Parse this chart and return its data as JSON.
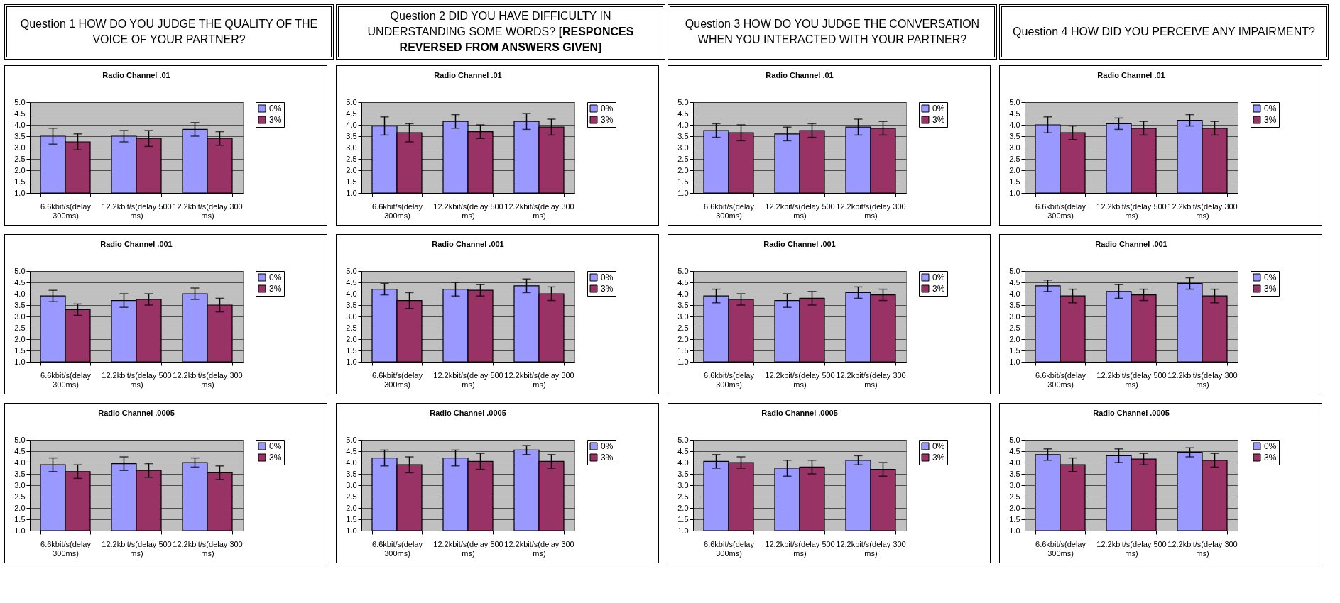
{
  "chart_data": [
    {
      "type": "bar",
      "title": "Radio Channel .01",
      "annotations": [
        "Question 1 HOW DO YOU JUDGE THE QUALITY OF THE VOICE OF YOUR PARTNER?"
      ],
      "categories": [
        "6.6kbit/s(delay 300ms)",
        "12.2kbit/s(delay 500 ms)",
        "12.2kbit/s(delay 300 ms)"
      ],
      "series": [
        {
          "name": "0%",
          "color": "#9999ff",
          "values": [
            3.5,
            3.5,
            3.8
          ],
          "errors": [
            0.35,
            0.25,
            0.3
          ]
        },
        {
          "name": "3%",
          "color": "#993366",
          "values": [
            3.25,
            3.4,
            3.4
          ],
          "errors": [
            0.35,
            0.35,
            0.3
          ]
        }
      ],
      "ylim": [
        1,
        5
      ],
      "yticks": [
        {
          "value": 1,
          "label": "1.0"
        },
        {
          "value": 1.5,
          "label": "1.5"
        },
        {
          "value": 2,
          "label": "2.0"
        },
        {
          "value": 2.5,
          "label": "2.5"
        },
        {
          "value": 3,
          "label": "3.0"
        },
        {
          "value": 3.5,
          "label": "3.5"
        },
        {
          "value": 4,
          "label": "4.0"
        },
        {
          "value": 4.5,
          "label": "4.5"
        },
        {
          "value": 5,
          "label": "5.0"
        }
      ],
      "grid": "y",
      "legend": "right"
    },
    {
      "type": "bar",
      "title": "Radio Channel .01",
      "annotations": [
        "Question 2 DID YOU HAVE DIFFICULTY IN UNDERSTANDING SOME WORDS?",
        "[RESPONCES REVERSED FROM ANSWERS GIVEN]"
      ],
      "categories": [
        "6.6kbit/s(delay 300ms)",
        "12.2kbit/s(delay 500 ms)",
        "12.2kbit/s(delay 300 ms)"
      ],
      "series": [
        {
          "name": "0%",
          "color": "#9999ff",
          "values": [
            3.95,
            4.15,
            4.15
          ],
          "errors": [
            0.4,
            0.3,
            0.35
          ]
        },
        {
          "name": "3%",
          "color": "#993366",
          "values": [
            3.65,
            3.7,
            3.9
          ],
          "errors": [
            0.4,
            0.3,
            0.35
          ]
        }
      ],
      "ylim": [
        1,
        5
      ],
      "yticks": [
        {
          "value": 1,
          "label": "1.0"
        },
        {
          "value": 1.5,
          "label": "1.5"
        },
        {
          "value": 2,
          "label": "2.0"
        },
        {
          "value": 2.5,
          "label": "2.5"
        },
        {
          "value": 3,
          "label": "3.0"
        },
        {
          "value": 3.5,
          "label": "3.5"
        },
        {
          "value": 4,
          "label": "4.0"
        },
        {
          "value": 4.5,
          "label": "4.5"
        },
        {
          "value": 5,
          "label": "5.0"
        }
      ],
      "grid": "y",
      "legend": "right"
    },
    {
      "type": "bar",
      "title": "Radio Channel .01",
      "annotations": [
        "Question 3 HOW DO YOU JUDGE THE CONVERSATION WHEN YOU INTERACTED WITH YOUR PARTNER?"
      ],
      "categories": [
        "6.6kbit/s(delay 300ms)",
        "12.2kbit/s(delay 500 ms)",
        "12.2kbit/s(delay 300 ms)"
      ],
      "series": [
        {
          "name": "0%",
          "color": "#9999ff",
          "values": [
            3.75,
            3.6,
            3.9
          ],
          "errors": [
            0.3,
            0.3,
            0.35
          ]
        },
        {
          "name": "3%",
          "color": "#993366",
          "values": [
            3.65,
            3.75,
            3.85
          ],
          "errors": [
            0.35,
            0.3,
            0.3
          ]
        }
      ],
      "ylim": [
        1,
        5
      ],
      "yticks": [
        {
          "value": 1,
          "label": "1.0"
        },
        {
          "value": 1.5,
          "label": "1.5"
        },
        {
          "value": 2,
          "label": "2.0"
        },
        {
          "value": 2.5,
          "label": "2.5"
        },
        {
          "value": 3,
          "label": "3.0"
        },
        {
          "value": 3.5,
          "label": "3.5"
        },
        {
          "value": 4,
          "label": "4.0"
        },
        {
          "value": 4.5,
          "label": "4.5"
        },
        {
          "value": 5,
          "label": "5.0"
        }
      ],
      "grid": "y",
      "legend": "right"
    },
    {
      "type": "bar",
      "title": "Radio Channel .01",
      "annotations": [
        "Question 4 HOW DID YOU PERCEIVE ANY IMPAIRMENT?"
      ],
      "categories": [
        "6.6kbit/s(delay 300ms)",
        "12.2kbit/s(delay 500 ms)",
        "12.2kbit/s(delay 300 ms)"
      ],
      "series": [
        {
          "name": "0%",
          "color": "#9999ff",
          "values": [
            4.0,
            4.05,
            4.2
          ],
          "errors": [
            0.35,
            0.25,
            0.25
          ]
        },
        {
          "name": "3%",
          "color": "#993366",
          "values": [
            3.65,
            3.85,
            3.85
          ],
          "errors": [
            0.3,
            0.3,
            0.3
          ]
        }
      ],
      "ylim": [
        1,
        5
      ],
      "yticks": [
        {
          "value": 1,
          "label": "1.0"
        },
        {
          "value": 1.5,
          "label": "1.5"
        },
        {
          "value": 2,
          "label": "2.0"
        },
        {
          "value": 2.5,
          "label": "2.5"
        },
        {
          "value": 3,
          "label": "3.0"
        },
        {
          "value": 3.5,
          "label": "3.5"
        },
        {
          "value": 4,
          "label": "4.0"
        },
        {
          "value": 4.5,
          "label": "4.5"
        },
        {
          "value": 5,
          "label": "5.0"
        }
      ],
      "grid": "y",
      "legend": "right"
    },
    {
      "type": "bar",
      "title": "Radio Channel .001",
      "categories": [
        "6.6kbit/s(delay 300ms)",
        "12.2kbit/s(delay 500 ms)",
        "12.2kbit/s(delay 300 ms)"
      ],
      "series": [
        {
          "name": "0%",
          "color": "#9999ff",
          "values": [
            3.9,
            3.7,
            4.0
          ],
          "errors": [
            0.25,
            0.3,
            0.25
          ]
        },
        {
          "name": "3%",
          "color": "#993366",
          "values": [
            3.3,
            3.75,
            3.5
          ],
          "errors": [
            0.25,
            0.25,
            0.3
          ]
        }
      ],
      "ylim": [
        1,
        5
      ],
      "yticks": [
        {
          "value": 1,
          "label": "1.0"
        },
        {
          "value": 1.5,
          "label": "1.5"
        },
        {
          "value": 2,
          "label": "2.0"
        },
        {
          "value": 2.5,
          "label": "2.5"
        },
        {
          "value": 3,
          "label": "3.0"
        },
        {
          "value": 3.5,
          "label": "3.5"
        },
        {
          "value": 4,
          "label": "4.0"
        },
        {
          "value": 4.5,
          "label": "4.5"
        },
        {
          "value": 5,
          "label": "5.0"
        }
      ],
      "grid": "y",
      "legend": "right"
    },
    {
      "type": "bar",
      "title": "Radio Channel .001",
      "categories": [
        "6.6kbit/s(delay 300ms)",
        "12.2kbit/s(delay 500 ms)",
        "12.2kbit/s(delay 300 ms)"
      ],
      "series": [
        {
          "name": "0%",
          "color": "#9999ff",
          "values": [
            4.2,
            4.2,
            4.35
          ],
          "errors": [
            0.25,
            0.3,
            0.3
          ]
        },
        {
          "name": "3%",
          "color": "#993366",
          "values": [
            3.7,
            4.15,
            4.0
          ],
          "errors": [
            0.35,
            0.25,
            0.3
          ]
        }
      ],
      "ylim": [
        1,
        5
      ],
      "yticks": [
        {
          "value": 1,
          "label": "1.0"
        },
        {
          "value": 1.5,
          "label": "1.5"
        },
        {
          "value": 2,
          "label": "2.0"
        },
        {
          "value": 2.5,
          "label": "2.5"
        },
        {
          "value": 3,
          "label": "3.0"
        },
        {
          "value": 3.5,
          "label": "3.5"
        },
        {
          "value": 4,
          "label": "4.0"
        },
        {
          "value": 4.5,
          "label": "4.5"
        },
        {
          "value": 5,
          "label": "5.0"
        }
      ],
      "grid": "y",
      "legend": "right"
    },
    {
      "type": "bar",
      "title": "Radio Channel .001",
      "categories": [
        "6.6kbit/s(delay 300ms)",
        "12.2kbit/s(delay 500 ms)",
        "12.2kbit/s(delay 300 ms)"
      ],
      "series": [
        {
          "name": "0%",
          "color": "#9999ff",
          "values": [
            3.9,
            3.7,
            4.05
          ],
          "errors": [
            0.3,
            0.3,
            0.25
          ]
        },
        {
          "name": "3%",
          "color": "#993366",
          "values": [
            3.75,
            3.8,
            3.95
          ],
          "errors": [
            0.25,
            0.3,
            0.25
          ]
        }
      ],
      "ylim": [
        1,
        5
      ],
      "yticks": [
        {
          "value": 1,
          "label": "1.0"
        },
        {
          "value": 1.5,
          "label": "1.5"
        },
        {
          "value": 2,
          "label": "2.0"
        },
        {
          "value": 2.5,
          "label": "2.5"
        },
        {
          "value": 3,
          "label": "3.0"
        },
        {
          "value": 3.5,
          "label": "3.5"
        },
        {
          "value": 4,
          "label": "4.0"
        },
        {
          "value": 4.5,
          "label": "4.5"
        },
        {
          "value": 5,
          "label": "5.0"
        }
      ],
      "grid": "y",
      "legend": "right"
    },
    {
      "type": "bar",
      "title": "Radio Channel .001",
      "categories": [
        "6.6kbit/s(delay 300ms)",
        "12.2kbit/s(delay 500 ms)",
        "12.2kbit/s(delay 300 ms)"
      ],
      "series": [
        {
          "name": "0%",
          "color": "#9999ff",
          "values": [
            4.35,
            4.1,
            4.45
          ],
          "errors": [
            0.25,
            0.3,
            0.25
          ]
        },
        {
          "name": "3%",
          "color": "#993366",
          "values": [
            3.9,
            3.95,
            3.9
          ],
          "errors": [
            0.3,
            0.25,
            0.3
          ]
        }
      ],
      "ylim": [
        1,
        5
      ],
      "yticks": [
        {
          "value": 1,
          "label": "1.0"
        },
        {
          "value": 1.5,
          "label": "1.5"
        },
        {
          "value": 2,
          "label": "2.0"
        },
        {
          "value": 2.5,
          "label": "2.5"
        },
        {
          "value": 3,
          "label": "3.0"
        },
        {
          "value": 3.5,
          "label": "3.5"
        },
        {
          "value": 4,
          "label": "4.0"
        },
        {
          "value": 4.5,
          "label": "4.5"
        },
        {
          "value": 5,
          "label": "5.0"
        }
      ],
      "grid": "y",
      "legend": "right"
    },
    {
      "type": "bar",
      "title": "Radio Channel .0005",
      "categories": [
        "6.6kbit/s(delay 300ms)",
        "12.2kbit/s(delay 500 ms)",
        "12.2kbit/s(delay 300 ms)"
      ],
      "series": [
        {
          "name": "0%",
          "color": "#9999ff",
          "values": [
            3.9,
            3.95,
            4.0
          ],
          "errors": [
            0.3,
            0.3,
            0.2
          ]
        },
        {
          "name": "3%",
          "color": "#993366",
          "values": [
            3.6,
            3.65,
            3.55
          ],
          "errors": [
            0.3,
            0.3,
            0.3
          ]
        }
      ],
      "ylim": [
        1,
        5
      ],
      "yticks": [
        {
          "value": 1,
          "label": "1.0"
        },
        {
          "value": 1.5,
          "label": "1.5"
        },
        {
          "value": 2,
          "label": "2.0"
        },
        {
          "value": 2.5,
          "label": "2.5"
        },
        {
          "value": 3,
          "label": "3.0"
        },
        {
          "value": 3.5,
          "label": "3.5"
        },
        {
          "value": 4,
          "label": "4.0"
        },
        {
          "value": 4.5,
          "label": "4.5"
        },
        {
          "value": 5,
          "label": "5.0"
        }
      ],
      "grid": "y",
      "legend": "right"
    },
    {
      "type": "bar",
      "title": "Radio Channel .0005",
      "categories": [
        "6.6kbit/s(delay 300ms)",
        "12.2kbit/s(delay 500 ms)",
        "12.2kbit/s(delay 300 ms)"
      ],
      "series": [
        {
          "name": "0%",
          "color": "#9999ff",
          "values": [
            4.2,
            4.2,
            4.55
          ],
          "errors": [
            0.35,
            0.35,
            0.2
          ]
        },
        {
          "name": "3%",
          "color": "#993366",
          "values": [
            3.9,
            4.05,
            4.05
          ],
          "errors": [
            0.35,
            0.35,
            0.3
          ]
        }
      ],
      "ylim": [
        1,
        5
      ],
      "yticks": [
        {
          "value": 1,
          "label": "1.0"
        },
        {
          "value": 1.5,
          "label": "1.5"
        },
        {
          "value": 2,
          "label": "2.0"
        },
        {
          "value": 2.5,
          "label": "2.5"
        },
        {
          "value": 3,
          "label": "3.0"
        },
        {
          "value": 3.5,
          "label": "3.5"
        },
        {
          "value": 4,
          "label": "4.0"
        },
        {
          "value": 4.5,
          "label": "4.5"
        },
        {
          "value": 5,
          "label": "5.0"
        }
      ],
      "grid": "y",
      "legend": "right"
    },
    {
      "type": "bar",
      "title": "Radio Channel .0005",
      "categories": [
        "6.6kbit/s(delay 300ms)",
        "12.2kbit/s(delay 500 ms)",
        "12.2kbit/s(delay 300 ms)"
      ],
      "series": [
        {
          "name": "0%",
          "color": "#9999ff",
          "values": [
            4.05,
            3.75,
            4.1
          ],
          "errors": [
            0.3,
            0.35,
            0.2
          ]
        },
        {
          "name": "3%",
          "color": "#993366",
          "values": [
            4.0,
            3.8,
            3.7
          ],
          "errors": [
            0.25,
            0.3,
            0.3
          ]
        }
      ],
      "ylim": [
        1,
        5
      ],
      "yticks": [
        {
          "value": 1,
          "label": "1.0"
        },
        {
          "value": 1.5,
          "label": "1.5"
        },
        {
          "value": 2,
          "label": "2.0"
        },
        {
          "value": 2.5,
          "label": "2.5"
        },
        {
          "value": 3,
          "label": "3.0"
        },
        {
          "value": 3.5,
          "label": "3.5"
        },
        {
          "value": 4,
          "label": "4.0"
        },
        {
          "value": 4.5,
          "label": "4.5"
        },
        {
          "value": 5,
          "label": "5.0"
        }
      ],
      "grid": "y",
      "legend": "right"
    },
    {
      "type": "bar",
      "title": "Radio Channel .0005",
      "categories": [
        "6.6kbit/s(delay 300ms)",
        "12.2kbit/s(delay 500 ms)",
        "12.2kbit/s(delay 300 ms)"
      ],
      "series": [
        {
          "name": "0%",
          "color": "#9999ff",
          "values": [
            4.35,
            4.3,
            4.45
          ],
          "errors": [
            0.25,
            0.3,
            0.2
          ]
        },
        {
          "name": "3%",
          "color": "#993366",
          "values": [
            3.9,
            4.15,
            4.1
          ],
          "errors": [
            0.3,
            0.25,
            0.3
          ]
        }
      ],
      "ylim": [
        1,
        5
      ],
      "yticks": [
        {
          "value": 1,
          "label": "1.0"
        },
        {
          "value": 1.5,
          "label": "1.5"
        },
        {
          "value": 2,
          "label": "2.0"
        },
        {
          "value": 2.5,
          "label": "2.5"
        },
        {
          "value": 3,
          "label": "3.0"
        },
        {
          "value": 3.5,
          "label": "3.5"
        },
        {
          "value": 4,
          "label": "4.0"
        },
        {
          "value": 4.5,
          "label": "4.5"
        },
        {
          "value": 5,
          "label": "5.0"
        }
      ],
      "grid": "y",
      "legend": "right"
    }
  ]
}
